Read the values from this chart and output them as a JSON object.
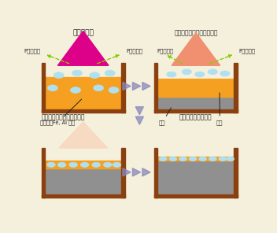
{
  "bg_color": "#f5f0dc",
  "wall_color": "#8B4010",
  "liquid_color": "#F5A020",
  "solid_color": "#909090",
  "beam_magenta": "#DD0088",
  "beam_salmon": "#F09070",
  "beam_light": "#F8D8C0",
  "bubble_color": "#B0E0F0",
  "arrow_color": "#8888BB",
  "green_color": "#88CC00",
  "text_color": "#222222",
  "labels": {
    "top_left_title": "電子ビーム",
    "top_right_title": "電子ビーム（出力ダウン）",
    "bottom_left_title": "電子ビーム（出力ダウン）",
    "bottom_right_title": "電子ビーム出力停止",
    "p_evap": "P（譒発）",
    "impurity": "不純物（Fe, Al 等）",
    "solid": "固相",
    "liquid": "液相"
  }
}
